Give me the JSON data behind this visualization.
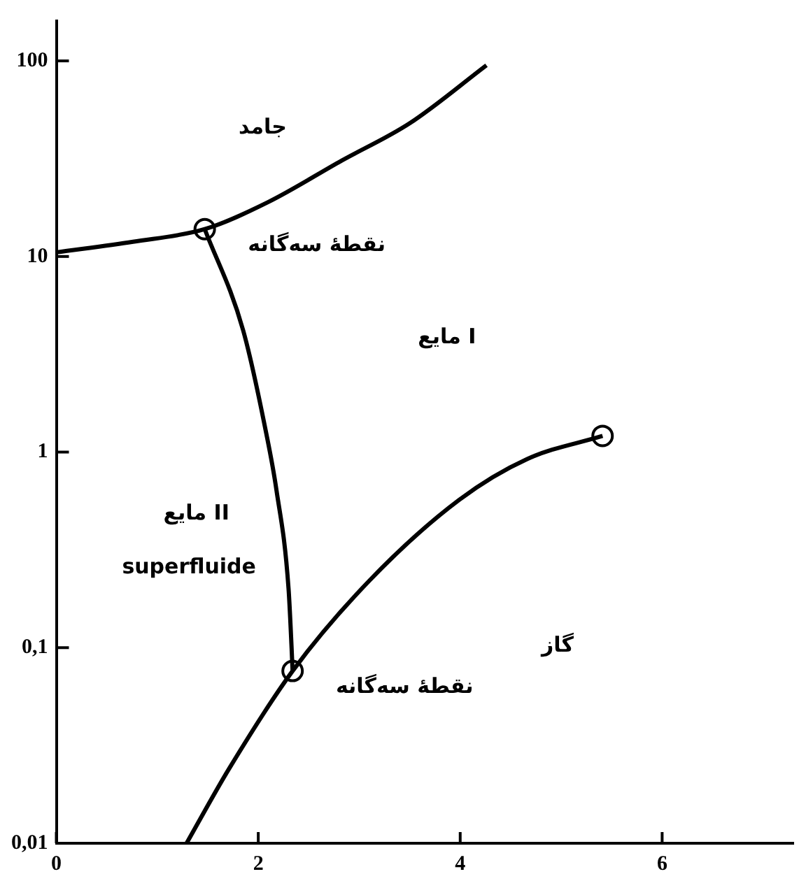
{
  "chart_data": {
    "type": "line",
    "xlim": [
      0,
      7.3
    ],
    "xticks": [
      0,
      2,
      4,
      6
    ],
    "ylim": [
      0.01,
      160
    ],
    "log": true,
    "yticks": [
      {
        "value": 0.01,
        "label": "0,01"
      },
      {
        "value": 0.1,
        "label": "0,1"
      },
      1,
      10,
      100
    ],
    "grid": false,
    "legend": false,
    "series": [
      {
        "type": "line",
        "color": "#000000",
        "marker": "none",
        "x": [
          0,
          0.76,
          1.47,
          2.1,
          2.83,
          3.5,
          4.26
        ],
        "values": [
          10.5,
          11.9,
          13.8,
          19,
          31,
          48,
          95
        ]
      },
      {
        "type": "line",
        "color": "#000000",
        "marker": "none",
        "x": [
          1.47,
          1.85,
          2.08,
          2.18,
          2.3,
          2.33,
          2.34
        ],
        "values": [
          13.8,
          4.2,
          1.24,
          0.64,
          0.2,
          0.1,
          0.076
        ]
      },
      {
        "type": "line",
        "color": "#000000",
        "marker": "none",
        "x": [
          1.29,
          1.71,
          2.34,
          3.1,
          3.99,
          4.66,
          5.41
        ],
        "values": [
          0.01,
          0.024,
          0.076,
          0.22,
          0.57,
          0.92,
          1.21
        ]
      },
      {
        "type": "scatter",
        "color": "#000000",
        "marker": "circle",
        "x": [
          1.47,
          2.34,
          5.41
        ],
        "values": [
          13.8,
          0.076,
          1.21
        ]
      }
    ],
    "annotations": [
      "جامد",
      {
        "text": "نقطهٔ سه‌گانه",
        "x": 1.47,
        "y": 13.8
      },
      "مایع I",
      "مایع II",
      "superfluide",
      "گاز",
      {
        "text": "نقطهٔ سه‌گانه",
        "x": 2.34,
        "y": 0.076
      }
    ]
  }
}
